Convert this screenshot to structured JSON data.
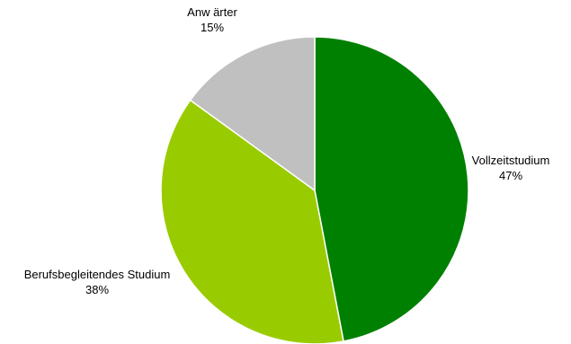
{
  "chart_data": {
    "type": "pie",
    "title": "",
    "slices": [
      {
        "label": "Vollzeitstudium",
        "value": 47,
        "value_label": "47%",
        "color": "#008000"
      },
      {
        "label": "Berufsbegleitendes Studium",
        "value": 38,
        "value_label": "38%",
        "color": "#99CC00"
      },
      {
        "label": "Anw ärter",
        "value": 15,
        "value_label": "15%",
        "color": "#C0C0C0"
      }
    ],
    "start_angle": "12 o'clock",
    "direction": "clockwise",
    "slice_border_color": "#FFFFFF",
    "legend": "none"
  }
}
